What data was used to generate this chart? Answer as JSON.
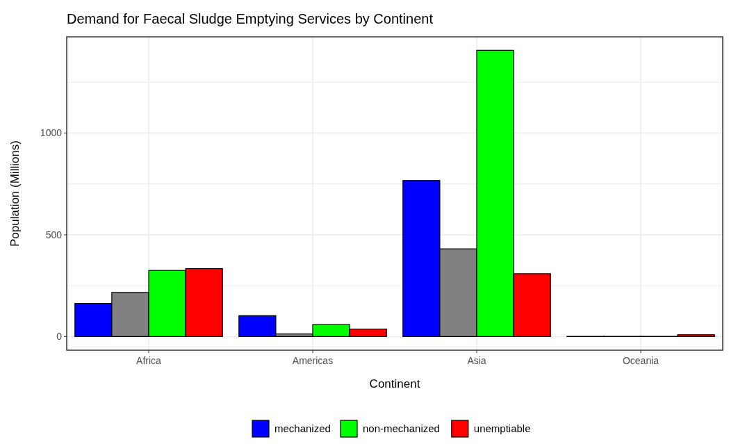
{
  "chart_data": {
    "type": "bar",
    "title": "Demand for Faecal Sludge Emptying Services by Continent",
    "xlabel": "Continent",
    "ylabel": "Population (Millions)",
    "categories": [
      "Africa",
      "Americas",
      "Asia",
      "Oceania"
    ],
    "series": [
      {
        "name": "mechanized",
        "color": "#0000ff",
        "values": [
          163,
          103,
          767,
          1
        ]
      },
      {
        "color": "#808080",
        "values": [
          217,
          13,
          431,
          1
        ]
      },
      {
        "name": "non-mechanized",
        "color": "#00ff00",
        "values": [
          325,
          59,
          1407,
          1
        ]
      },
      {
        "name": "unemptiable",
        "color": "#ff0000",
        "values": [
          334,
          37,
          309,
          9
        ]
      }
    ],
    "ylim": [
      -67,
      1473
    ],
    "yticks": [
      0,
      {
        "value": 250,
        "label": null
      },
      500,
      {
        "value": 750,
        "label": null
      },
      1000,
      {
        "value": 1250,
        "label": null
      }
    ],
    "grid": true,
    "legend": "bottom"
  }
}
